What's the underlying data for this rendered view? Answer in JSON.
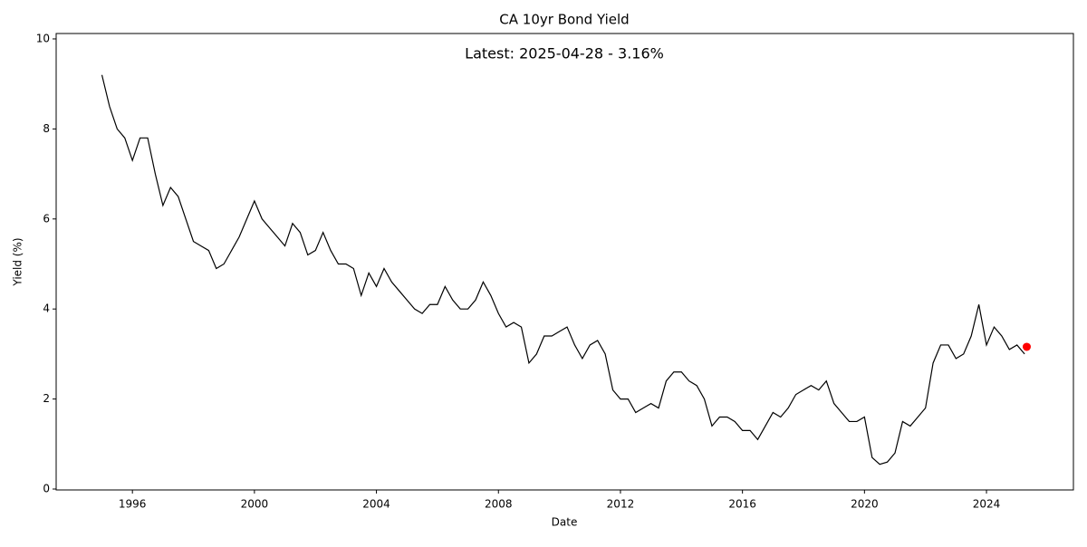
{
  "chart_data": {
    "type": "line",
    "title": "CA 10yr Bond Yield",
    "annotation": "Latest: 2025-04-28 - 3.16%",
    "xlabel": "Date",
    "ylabel": "Yield (%)",
    "x": [
      1995.0,
      1995.25,
      1995.5,
      1995.75,
      1996.0,
      1996.25,
      1996.5,
      1996.75,
      1997.0,
      1997.25,
      1997.5,
      1997.75,
      1998.0,
      1998.25,
      1998.5,
      1998.75,
      1999.0,
      1999.25,
      1999.5,
      1999.75,
      2000.0,
      2000.25,
      2000.5,
      2000.75,
      2001.0,
      2001.25,
      2001.5,
      2001.75,
      2002.0,
      2002.25,
      2002.5,
      2002.75,
      2003.0,
      2003.25,
      2003.5,
      2003.75,
      2004.0,
      2004.25,
      2004.5,
      2004.75,
      2005.0,
      2005.25,
      2005.5,
      2005.75,
      2006.0,
      2006.25,
      2006.5,
      2006.75,
      2007.0,
      2007.25,
      2007.5,
      2007.75,
      2008.0,
      2008.25,
      2008.5,
      2008.75,
      2009.0,
      2009.25,
      2009.5,
      2009.75,
      2010.0,
      2010.25,
      2010.5,
      2010.75,
      2011.0,
      2011.25,
      2011.5,
      2011.75,
      2012.0,
      2012.25,
      2012.5,
      2012.75,
      2013.0,
      2013.25,
      2013.5,
      2013.75,
      2014.0,
      2014.25,
      2014.5,
      2014.75,
      2015.0,
      2015.25,
      2015.5,
      2015.75,
      2016.0,
      2016.25,
      2016.5,
      2016.75,
      2017.0,
      2017.25,
      2017.5,
      2017.75,
      2018.0,
      2018.25,
      2018.5,
      2018.75,
      2019.0,
      2019.25,
      2019.5,
      2019.75,
      2020.0,
      2020.25,
      2020.5,
      2020.75,
      2021.0,
      2021.25,
      2021.5,
      2021.75,
      2022.0,
      2022.25,
      2022.5,
      2022.75,
      2023.0,
      2023.25,
      2023.5,
      2023.75,
      2024.0,
      2024.25,
      2024.5,
      2024.75,
      2025.0,
      2025.25
    ],
    "series": [
      {
        "color": "#000000",
        "values": [
          9.2,
          8.5,
          8.0,
          7.8,
          7.3,
          7.8,
          7.8,
          7.0,
          6.3,
          6.7,
          6.5,
          6.0,
          5.5,
          5.4,
          5.3,
          4.9,
          5.0,
          5.3,
          5.6,
          6.0,
          6.4,
          6.0,
          5.8,
          5.6,
          5.4,
          5.9,
          5.7,
          5.2,
          5.3,
          5.7,
          5.3,
          5.0,
          5.0,
          4.9,
          4.3,
          4.8,
          4.5,
          4.9,
          4.6,
          4.4,
          4.2,
          4.0,
          3.9,
          4.1,
          4.1,
          4.5,
          4.2,
          4.0,
          4.0,
          4.2,
          4.6,
          4.3,
          3.9,
          3.6,
          3.7,
          3.6,
          2.8,
          3.0,
          3.4,
          3.4,
          3.5,
          3.6,
          3.2,
          2.9,
          3.2,
          3.3,
          3.0,
          2.2,
          2.0,
          2.0,
          1.7,
          1.8,
          1.9,
          1.8,
          2.4,
          2.6,
          2.6,
          2.4,
          2.3,
          2.0,
          1.4,
          1.6,
          1.6,
          1.5,
          1.3,
          1.3,
          1.1,
          1.4,
          1.7,
          1.6,
          1.8,
          2.1,
          2.2,
          2.3,
          2.2,
          2.4,
          1.9,
          1.7,
          1.5,
          1.5,
          1.6,
          0.7,
          0.55,
          0.6,
          0.8,
          1.5,
          1.4,
          1.6,
          1.8,
          2.8,
          3.2,
          3.2,
          2.9,
          3.0,
          3.4,
          4.1,
          3.2,
          3.6,
          3.4,
          3.1,
          3.2,
          3.0
        ]
      }
    ],
    "latest_point": {
      "x": 2025.32,
      "y": 3.16,
      "color": "#ff0000"
    },
    "xlim": [
      1993.5,
      2026.85
    ],
    "xticks": [
      1996,
      2000,
      2004,
      2008,
      2012,
      2016,
      2020,
      2024
    ],
    "ylim": [
      -0.02,
      10.12
    ],
    "yticks": [
      0,
      2,
      4,
      6,
      8,
      10
    ]
  }
}
